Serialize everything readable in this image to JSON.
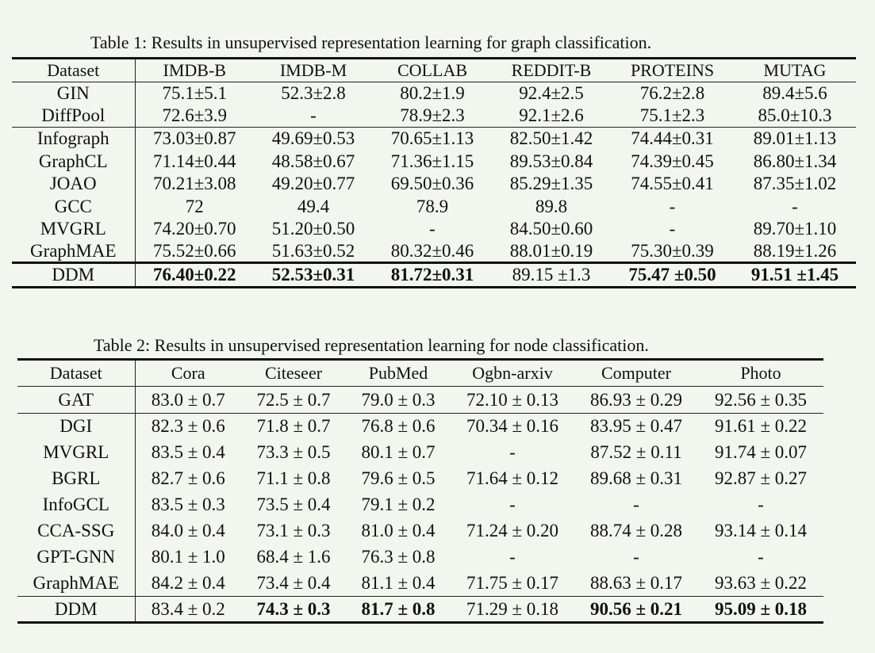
{
  "table1": {
    "caption": "Table 1: Results in unsupervised representation learning for graph classification.",
    "headers": [
      "Dataset",
      "IMDB-B",
      "IMDB-M",
      "COLLAB",
      "REDDIT-B",
      "PROTEINS",
      "MUTAG"
    ],
    "rows": [
      {
        "name": "GIN",
        "cells": [
          "75.1±5.1",
          "52.3±2.8",
          "80.2±1.9",
          "92.4±2.5",
          "76.2±2.8",
          "89.4±5.6"
        ]
      },
      {
        "name": "DiffPool",
        "cells": [
          "72.6±3.9",
          "-",
          "78.9±2.3",
          "92.1±2.6",
          "75.1±2.3",
          "85.0±10.3"
        ]
      },
      {
        "name": "Infograph",
        "cells": [
          "73.03±0.87",
          "49.69±0.53",
          "70.65±1.13",
          "82.50±1.42",
          "74.44±0.31",
          "89.01±1.13"
        ]
      },
      {
        "name": "GraphCL",
        "cells": [
          "71.14±0.44",
          "48.58±0.67",
          "71.36±1.15",
          "89.53±0.84",
          "74.39±0.45",
          "86.80±1.34"
        ]
      },
      {
        "name": "JOAO",
        "cells": [
          "70.21±3.08",
          "49.20±0.77",
          "69.50±0.36",
          "85.29±1.35",
          "74.55±0.41",
          "87.35±1.02"
        ]
      },
      {
        "name": "GCC",
        "cells": [
          "72",
          "49.4",
          "78.9",
          "89.8",
          "-",
          "-"
        ]
      },
      {
        "name": "MVGRL",
        "cells": [
          "74.20±0.70",
          "51.20±0.50",
          "-",
          "84.50±0.60",
          "-",
          "89.70±1.10"
        ]
      },
      {
        "name": "GraphMAE",
        "cells": [
          "75.52±0.66",
          "51.63±0.52",
          "80.32±0.46",
          "88.01±0.19",
          "75.30±0.39",
          "88.19±1.26"
        ]
      },
      {
        "name": "DDM",
        "cells": [
          "76.40±0.22",
          "52.53±0.31",
          "81.72±0.31",
          "89.15 ±1.3",
          "75.47 ±0.50",
          "91.51 ±1.45"
        ]
      }
    ]
  },
  "table2": {
    "caption": "Table 2: Results in unsupervised representation learning for node classification.",
    "headers": [
      "Dataset",
      "Cora",
      "Citeseer",
      "PubMed",
      "Ogbn-arxiv",
      "Computer",
      "Photo"
    ],
    "rows": [
      {
        "name": "GAT",
        "cells": [
          "83.0 ± 0.7",
          "72.5 ± 0.7",
          "79.0 ± 0.3",
          "72.10 ± 0.13",
          "86.93 ± 0.29",
          "92.56 ± 0.35"
        ]
      },
      {
        "name": "DGI",
        "cells": [
          "82.3 ± 0.6",
          "71.8 ± 0.7",
          "76.8 ± 0.6",
          "70.34 ± 0.16",
          "83.95 ± 0.47",
          "91.61 ± 0.22"
        ]
      },
      {
        "name": "MVGRL",
        "cells": [
          "83.5 ± 0.4",
          "73.3 ± 0.5",
          "80.1 ± 0.7",
          "-",
          "87.52 ± 0.11",
          "91.74 ± 0.07"
        ]
      },
      {
        "name": "BGRL",
        "cells": [
          "82.7 ± 0.6",
          "71.1 ± 0.8",
          "79.6 ± 0.5",
          "71.64 ± 0.12",
          "89.68 ± 0.31",
          "92.87 ± 0.27"
        ]
      },
      {
        "name": "InfoGCL",
        "cells": [
          "83.5 ± 0.3",
          "73.5 ± 0.4",
          "79.1 ± 0.2",
          "-",
          "-",
          "-"
        ]
      },
      {
        "name": "CCA-SSG",
        "cells": [
          "84.0 ± 0.4",
          "73.1 ± 0.3",
          "81.0 ± 0.4",
          "71.24 ± 0.20",
          "88.74 ± 0.28",
          "93.14 ± 0.14"
        ]
      },
      {
        "name": "GPT-GNN",
        "cells": [
          "80.1 ± 1.0",
          "68.4 ± 1.6",
          "76.3 ± 0.8",
          "-",
          "-",
          "-"
        ]
      },
      {
        "name": "GraphMAE",
        "cells": [
          "84.2 ± 0.4",
          "73.4 ± 0.4",
          "81.1 ± 0.4",
          "71.75 ± 0.17",
          "88.63 ± 0.17",
          "93.63 ± 0.22"
        ]
      },
      {
        "name": "DDM",
        "cells": [
          "83.4 ± 0.2",
          "74.3 ± 0.3",
          "81.7 ± 0.8",
          "71.29 ± 0.18",
          "90.56 ± 0.21",
          "95.09 ± 0.18"
        ]
      }
    ]
  }
}
